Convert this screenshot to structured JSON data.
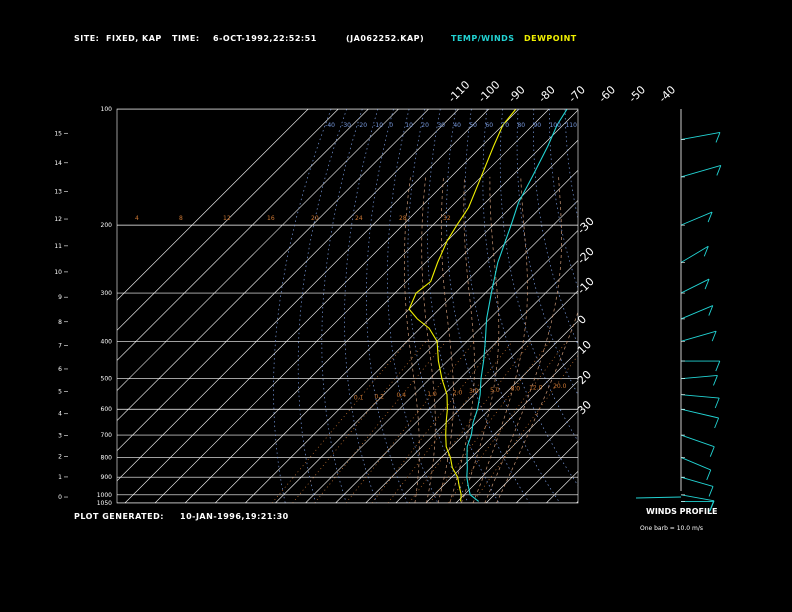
{
  "header": {
    "site_label": "SITE:",
    "site_value": "FIXED, KAP",
    "time_label": "TIME:",
    "time_value": "6-OCT-1992,22:52:51",
    "file_value": "(JA062252.KAP)",
    "temp_legend": "TEMP/WINDS",
    "dew_legend": "DEWPOINT"
  },
  "footer": {
    "generated_label": "PLOT GENERATED:",
    "generated_value": "10-JAN-1996,19:21:30"
  },
  "winds": {
    "title": "WINDS PROFILE",
    "note": "One barb = 10.0 m/s"
  },
  "colors": {
    "temperature": "#22d3d3",
    "dewpoint": "#f0f000",
    "grid": "#ffffff",
    "dry_adiabat": "#7799dd",
    "mixing_ratio": "#cc7733",
    "moist_adiabat": "#cc9977"
  },
  "chart_data": {
    "type": "line",
    "subtype": "skew-t log-p sounding",
    "pressure_levels": [
      100,
      200,
      300,
      400,
      500,
      600,
      700,
      800,
      900,
      1000,
      1050
    ],
    "pressure_labels": [
      "100",
      "200",
      "300",
      "400",
      "500",
      "600",
      "700",
      "800",
      "900",
      "1000",
      "1050"
    ],
    "height_ticks_km": [
      "0",
      "1",
      "2",
      "3",
      "4",
      "5",
      "6",
      "7",
      "8",
      "9",
      "10",
      "11",
      "12",
      "13",
      "14",
      "15"
    ],
    "height_km_values": [
      0,
      1,
      2,
      3,
      4,
      5,
      6,
      7,
      8,
      9,
      10,
      11,
      12,
      13,
      14,
      15
    ],
    "skew_temp_labels_top": [
      "-110",
      "-100",
      "-90",
      "-80",
      "-70",
      "-60",
      "-50",
      "-40"
    ],
    "skew_temp_labels_right": [
      "-30",
      "-20",
      "-10",
      "0",
      "10",
      "20",
      "30"
    ],
    "dry_adiabat_labels": [
      "-40",
      "-30",
      "-20",
      "-10",
      "0",
      "10",
      "20",
      "30",
      "40",
      "50",
      "60",
      "70",
      "80",
      "90",
      "100",
      "110",
      "120",
      "130",
      "140",
      "150",
      "160"
    ],
    "moist_adiabat_labels": [
      "4",
      "8",
      "12",
      "16",
      "20",
      "24",
      "28",
      "32"
    ],
    "mixing_ratio_labels": [
      "0.1",
      "0.2",
      "0.4",
      "1.0",
      "2.0",
      "3.0",
      "5.0",
      "8.0",
      "12.0",
      "20.0"
    ],
    "temperature": {
      "name": "TEMP/WINDS",
      "points": [
        [
          1040,
          27
        ],
        [
          1000,
          22
        ],
        [
          950,
          18.5
        ],
        [
          900,
          15
        ],
        [
          850,
          12
        ],
        [
          800,
          8.5
        ],
        [
          750,
          5
        ],
        [
          700,
          2.5
        ],
        [
          650,
          -1
        ],
        [
          600,
          -4
        ],
        [
          550,
          -8
        ],
        [
          500,
          -13
        ],
        [
          450,
          -18
        ],
        [
          400,
          -24
        ],
        [
          350,
          -31
        ],
        [
          300,
          -38
        ],
        [
          250,
          -46
        ],
        [
          200,
          -54
        ],
        [
          175,
          -59
        ],
        [
          150,
          -63
        ],
        [
          125,
          -68
        ],
        [
          110,
          -72
        ],
        [
          100,
          -74
        ]
      ]
    },
    "dewpoint": {
      "name": "DEWPOINT",
      "points": [
        [
          1040,
          21
        ],
        [
          1000,
          19
        ],
        [
          950,
          15.5
        ],
        [
          900,
          12
        ],
        [
          850,
          7
        ],
        [
          800,
          3
        ],
        [
          750,
          -2
        ],
        [
          700,
          -6
        ],
        [
          650,
          -10
        ],
        [
          600,
          -14
        ],
        [
          550,
          -19
        ],
        [
          500,
          -26
        ],
        [
          450,
          -33
        ],
        [
          400,
          -40
        ],
        [
          370,
          -47
        ],
        [
          350,
          -54
        ],
        [
          330,
          -60
        ],
        [
          300,
          -63
        ],
        [
          280,
          -62
        ],
        [
          250,
          -66
        ],
        [
          220,
          -70
        ],
        [
          200,
          -72
        ],
        [
          180,
          -74
        ],
        [
          150,
          -80
        ],
        [
          125,
          -86
        ],
        [
          110,
          -90
        ],
        [
          100,
          -91
        ]
      ]
    },
    "winds": [
      {
        "p": 1040,
        "dir": 270,
        "spd_ms": 5
      },
      {
        "p": 1000,
        "dir": 250,
        "spd_ms": 8
      },
      {
        "p": 900,
        "dir": 240,
        "spd_ms": 10
      },
      {
        "p": 800,
        "dir": 230,
        "spd_ms": 12
      },
      {
        "p": 700,
        "dir": 235,
        "spd_ms": 14
      },
      {
        "p": 600,
        "dir": 245,
        "spd_ms": 15
      },
      {
        "p": 550,
        "dir": 260,
        "spd_ms": 12
      },
      {
        "p": 500,
        "dir": 280,
        "spd_ms": 10
      },
      {
        "p": 450,
        "dir": 270,
        "spd_ms": 12
      },
      {
        "p": 400,
        "dir": 300,
        "spd_ms": 14
      },
      {
        "p": 350,
        "dir": 310,
        "spd_ms": 15
      },
      {
        "p": 300,
        "dir": 315,
        "spd_ms": 13
      },
      {
        "p": 250,
        "dir": 320,
        "spd_ms": 16
      },
      {
        "p": 200,
        "dir": 310,
        "spd_ms": 14
      },
      {
        "p": 150,
        "dir": 300,
        "spd_ms": 20
      },
      {
        "p": 120,
        "dir": 290,
        "spd_ms": 15
      }
    ]
  }
}
